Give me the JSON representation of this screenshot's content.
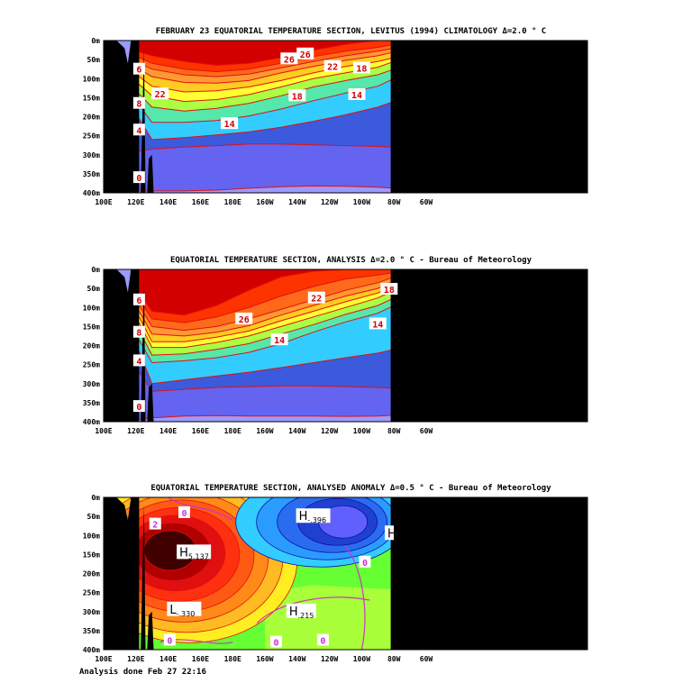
{
  "footer": "Analysis done Feb 27 22:16",
  "colors": {
    "land": "#000000",
    "contour_line": "#e01010",
    "anomaly_line": "#cc33cc",
    "label_text": "#d00000"
  },
  "chart_data": [
    {
      "type": "heatmap",
      "title": "FEBRUARY 23 EQUATORIAL TEMPERATURE SECTION, LEVITUS (1994) CLIMATOLOGY  Δ=2.0 ° C",
      "x_ticks": [
        "100E",
        "120E",
        "140E",
        "160E",
        "180E",
        "160W",
        "140W",
        "120W",
        "100W",
        "80W",
        "60W"
      ],
      "y_ticks": [
        "0m",
        "50m",
        "100m",
        "150m",
        "200m",
        "250m",
        "300m",
        "350m",
        "400m"
      ],
      "xlim": [
        "100E",
        "60W"
      ],
      "ylim": [
        0,
        400
      ],
      "contour_interval": 2.0,
      "palette": [
        "#9b9bff",
        "#6464f0",
        "#3c5adc",
        "#33ccff",
        "#55e8aa",
        "#aaff44",
        "#ffff33",
        "#ffcc22",
        "#ff9933",
        "#ff6a1a",
        "#ff3300",
        "#d30000"
      ],
      "isotherms": [
        {
          "value": 28,
          "depth": [
            30,
            40,
            55,
            65,
            60,
            45,
            25,
            10,
            0,
            0
          ]
        },
        {
          "value": 26,
          "depth": [
            45,
            60,
            75,
            82,
            75,
            60,
            42,
            28,
            18,
            10
          ]
        },
        {
          "value": 24,
          "depth": [
            60,
            75,
            90,
            95,
            88,
            72,
            55,
            40,
            28,
            20
          ]
        },
        {
          "value": 22,
          "depth": [
            75,
            95,
            110,
            112,
            105,
            85,
            68,
            52,
            40,
            30
          ]
        },
        {
          "value": 20,
          "depth": [
            95,
            120,
            135,
            132,
            122,
            105,
            85,
            68,
            55,
            45
          ]
        },
        {
          "value": 18,
          "depth": [
            115,
            145,
            160,
            155,
            142,
            122,
            100,
            85,
            70,
            55
          ]
        },
        {
          "value": 16,
          "depth": [
            140,
            175,
            185,
            178,
            165,
            145,
            122,
            105,
            90,
            75
          ]
        },
        {
          "value": 14,
          "depth": [
            170,
            215,
            215,
            210,
            198,
            180,
            158,
            138,
            120,
            100
          ]
        },
        {
          "value": 12,
          "depth": [
            205,
            260,
            255,
            248,
            240,
            228,
            212,
            195,
            175,
            160
          ]
        },
        {
          "value": 10,
          "depth": [
            290,
            285,
            280,
            276,
            272,
            272,
            274,
            276,
            278,
            280
          ]
        },
        {
          "value": 8,
          "depth": [
            395,
            395,
            395,
            393,
            388,
            384,
            382,
            383,
            385,
            388
          ]
        }
      ],
      "labels": [
        {
          "text": "26",
          "lon": "145W",
          "depth": 48
        },
        {
          "text": "26",
          "lon": "135W",
          "depth": 35
        },
        {
          "text": "22",
          "lon": "118W",
          "depth": 68
        },
        {
          "text": "18",
          "lon": "100W",
          "depth": 72
        },
        {
          "text": "22",
          "lon": "135E",
          "depth": 140
        },
        {
          "text": "18",
          "lon": "140W",
          "depth": 145
        },
        {
          "text": "14",
          "lon": "103W",
          "depth": 142
        },
        {
          "text": "14",
          "lon": "178E",
          "depth": 218
        },
        {
          "text": "6",
          "lon": "122E",
          "depth": 75
        },
        {
          "text": "8",
          "lon": "122E",
          "depth": 165
        },
        {
          "text": "4",
          "lon": "122E",
          "depth": 235
        },
        {
          "text": "0",
          "lon": "122E",
          "depth": 360
        }
      ]
    },
    {
      "type": "heatmap",
      "title": "EQUATORIAL TEMPERATURE SECTION, ANALYSIS   Δ=2.0 ° C   -  Bureau of Meteorology",
      "x_ticks": [
        "100E",
        "120E",
        "140E",
        "160E",
        "180E",
        "160W",
        "140W",
        "120W",
        "100W",
        "80W",
        "60W"
      ],
      "y_ticks": [
        "0m",
        "50m",
        "100m",
        "150m",
        "200m",
        "250m",
        "300m",
        "350m",
        "400m"
      ],
      "xlim": [
        "100E",
        "60W"
      ],
      "ylim": [
        0,
        400
      ],
      "contour_interval": 2.0,
      "palette": [
        "#9b9bff",
        "#6464f0",
        "#3c5adc",
        "#33ccff",
        "#55e8aa",
        "#aaff44",
        "#ffff33",
        "#ffcc22",
        "#ff9933",
        "#ff6a1a",
        "#ff3300",
        "#d30000"
      ],
      "isotherms": [
        {
          "value": 28,
          "depth": [
            60,
            110,
            120,
            95,
            55,
            20,
            5,
            0,
            0,
            0
          ]
        },
        {
          "value": 26,
          "depth": [
            80,
            130,
            140,
            125,
            100,
            70,
            45,
            25,
            15,
            8
          ]
        },
        {
          "value": 24,
          "depth": [
            95,
            150,
            160,
            150,
            130,
            105,
            80,
            55,
            35,
            20
          ]
        },
        {
          "value": 22,
          "depth": [
            110,
            170,
            175,
            165,
            148,
            120,
            95,
            70,
            50,
            30
          ]
        },
        {
          "value": 20,
          "depth": [
            125,
            190,
            190,
            178,
            162,
            135,
            110,
            85,
            62,
            42
          ]
        },
        {
          "value": 18,
          "depth": [
            140,
            205,
            205,
            192,
            175,
            150,
            125,
            100,
            75,
            55
          ]
        },
        {
          "value": 16,
          "depth": [
            160,
            225,
            222,
            210,
            195,
            170,
            145,
            118,
            95,
            75
          ]
        },
        {
          "value": 14,
          "depth": [
            185,
            245,
            240,
            232,
            218,
            195,
            165,
            138,
            115,
            95
          ]
        },
        {
          "value": 12,
          "depth": [
            215,
            300,
            290,
            280,
            270,
            258,
            245,
            232,
            220,
            210
          ]
        },
        {
          "value": 10,
          "depth": [
            270,
            320,
            315,
            310,
            308,
            306,
            306,
            308,
            310,
            312
          ]
        },
        {
          "value": 8,
          "depth": [
            395,
            390,
            385,
            384,
            385,
            385,
            385,
            386,
            385,
            383
          ]
        }
      ],
      "labels": [
        {
          "text": "26",
          "lon": "173W",
          "depth": 130
        },
        {
          "text": "22",
          "lon": "128W",
          "depth": 75
        },
        {
          "text": "18",
          "lon": "83W",
          "depth": 52
        },
        {
          "text": "14",
          "lon": "151W",
          "depth": 185
        },
        {
          "text": "14",
          "lon": "90W",
          "depth": 143
        },
        {
          "text": "6",
          "lon": "122E",
          "depth": 80
        },
        {
          "text": "8",
          "lon": "122E",
          "depth": 165
        },
        {
          "text": "4",
          "lon": "122E",
          "depth": 240
        },
        {
          "text": "0",
          "lon": "122E",
          "depth": 360
        }
      ]
    },
    {
      "type": "heatmap",
      "title": "EQUATORIAL TEMPERATURE SECTION, ANALYSED ANOMALY   Δ=0.5 ° C   -  Bureau of Meteorology",
      "x_ticks": [
        "100E",
        "120E",
        "140E",
        "160E",
        "180E",
        "160W",
        "140W",
        "120W",
        "100W",
        "80W",
        "60W"
      ],
      "y_ticks": [
        "0m",
        "50m",
        "100m",
        "150m",
        "200m",
        "250m",
        "300m",
        "350m",
        "400m"
      ],
      "xlim": [
        "100E",
        "60W"
      ],
      "ylim": [
        0,
        400
      ],
      "contour_interval": 0.5,
      "extrema": [
        {
          "kind": "H",
          "value": "5.137",
          "lon": "147E",
          "depth": 150
        },
        {
          "kind": "H",
          "value": "-.396",
          "lon": "139W",
          "depth": 55
        },
        {
          "kind": "L",
          "value": "-.330",
          "lon": "141E",
          "depth": 300
        },
        {
          "kind": "H",
          "value": ".215",
          "lon": "145W",
          "depth": 305
        },
        {
          "kind": "H",
          "value": "",
          "lon": "84W",
          "depth": 100
        }
      ],
      "labels": [
        {
          "text": "0",
          "lon": "150E",
          "depth": 40
        },
        {
          "text": "2",
          "lon": "132E",
          "depth": 70
        },
        {
          "text": "0",
          "lon": "98W",
          "depth": 170
        },
        {
          "text": "0",
          "lon": "141E",
          "depth": 375
        },
        {
          "text": "0",
          "lon": "153W",
          "depth": 380
        },
        {
          "text": "0",
          "lon": "124W",
          "depth": 375
        }
      ]
    }
  ]
}
